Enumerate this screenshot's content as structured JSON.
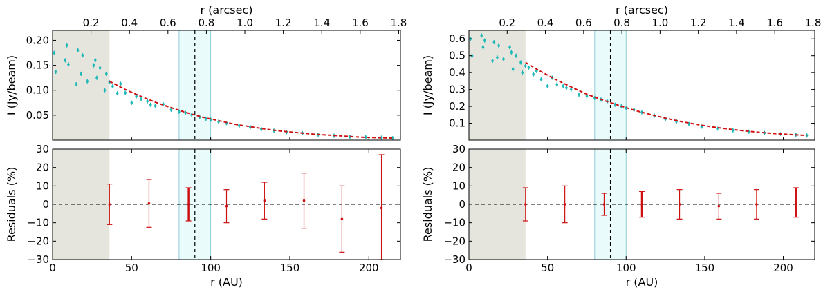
{
  "colors": {
    "shade": "#e5e5dd",
    "band_fill": "#e9fbfb",
    "band_edge": "#8ecfd6",
    "points": "#1fb8b8",
    "model": "#d01010",
    "resid": "#cc1111",
    "axis": "#000000"
  },
  "chart_data": [
    {
      "type": "scatter",
      "panel": "left",
      "top": {
        "ylabel": "I (Jy/beam)",
        "ylim": [
          0.0,
          0.22
        ],
        "yticks": [
          0.05,
          0.1,
          0.15,
          0.2
        ],
        "ytick_labels": [
          "0.05",
          "0.10",
          "0.15",
          "0.20"
        ],
        "points_r_au": [
          1,
          2,
          8,
          9,
          10,
          15,
          16,
          18,
          19,
          22,
          26,
          27,
          28,
          30,
          33,
          34,
          36,
          38,
          41,
          43,
          46,
          50,
          53,
          56,
          60,
          62,
          65,
          70,
          75,
          80,
          84,
          88,
          93,
          97,
          100,
          105,
          110,
          118,
          125,
          132,
          140,
          148,
          158,
          168,
          178,
          188,
          198,
          208,
          215
        ],
        "points_i": [
          0.175,
          0.137,
          0.16,
          0.19,
          0.152,
          0.112,
          0.18,
          0.133,
          0.17,
          0.118,
          0.15,
          0.16,
          0.125,
          0.145,
          0.1,
          0.133,
          0.116,
          0.108,
          0.094,
          0.113,
          0.095,
          0.075,
          0.088,
          0.082,
          0.078,
          0.071,
          0.069,
          0.072,
          0.061,
          0.057,
          0.055,
          0.051,
          0.046,
          0.043,
          0.041,
          0.037,
          0.034,
          0.029,
          0.026,
          0.022,
          0.019,
          0.016,
          0.014,
          0.011,
          0.009,
          0.007,
          0.006,
          0.005,
          0.004
        ],
        "model_r_au": [
          36,
          45,
          55,
          65,
          75,
          85,
          95,
          105,
          115,
          125,
          135,
          145,
          155,
          165,
          175,
          185,
          195,
          205,
          215
        ],
        "model_i": [
          0.118,
          0.103,
          0.089,
          0.076,
          0.065,
          0.055,
          0.046,
          0.039,
          0.032,
          0.027,
          0.022,
          0.018,
          0.015,
          0.012,
          0.01,
          0.008,
          0.006,
          0.005,
          0.004
        ]
      },
      "bottom": {
        "ylabel": "Residuals (%)",
        "ylim": [
          -30,
          30
        ],
        "yticks": [
          -30,
          -20,
          -10,
          0,
          10,
          20,
          30
        ],
        "ytick_labels": [
          "−30",
          "−20",
          "−10",
          "0",
          "10",
          "20",
          "30"
        ],
        "resid_r_au": [
          36,
          61,
          86,
          110,
          134,
          159,
          183,
          208
        ],
        "resid_value": [
          0,
          0.5,
          0,
          -1,
          2,
          2,
          -8,
          -2
        ],
        "resid_err": [
          11,
          13,
          9,
          9,
          10,
          15,
          18,
          29
        ],
        "resid_bold": [
          false,
          false,
          true,
          false,
          false,
          false,
          false,
          false
        ]
      }
    },
    {
      "type": "scatter",
      "panel": "right",
      "top": {
        "ylabel": "I (Jy/beam)",
        "ylim": [
          0.0,
          0.65
        ],
        "yticks": [
          0.1,
          0.2,
          0.3,
          0.4,
          0.5,
          0.6
        ],
        "ytick_labels": [
          "0.1",
          "0.2",
          "0.3",
          "0.4",
          "0.5",
          "0.6"
        ],
        "points_r_au": [
          1,
          2,
          8,
          9,
          10,
          15,
          16,
          18,
          19,
          22,
          26,
          27,
          28,
          30,
          33,
          34,
          36,
          38,
          41,
          43,
          46,
          50,
          53,
          56,
          60,
          62,
          65,
          70,
          75,
          80,
          84,
          88,
          93,
          97,
          100,
          105,
          110,
          118,
          125,
          132,
          140,
          148,
          158,
          168,
          178,
          188,
          198,
          208,
          215
        ],
        "points_i": [
          0.6,
          0.5,
          0.62,
          0.55,
          0.59,
          0.47,
          0.58,
          0.49,
          0.56,
          0.48,
          0.55,
          0.52,
          0.42,
          0.5,
          0.46,
          0.4,
          0.44,
          0.43,
          0.39,
          0.41,
          0.36,
          0.32,
          0.37,
          0.33,
          0.32,
          0.31,
          0.3,
          0.27,
          0.26,
          0.25,
          0.24,
          0.23,
          0.21,
          0.2,
          0.19,
          0.18,
          0.165,
          0.145,
          0.125,
          0.11,
          0.095,
          0.08,
          0.068,
          0.058,
          0.05,
          0.043,
          0.037,
          0.032,
          0.028
        ],
        "model_r_au": [
          36,
          45,
          55,
          65,
          75,
          85,
          95,
          105,
          115,
          125,
          135,
          145,
          155,
          165,
          175,
          185,
          195,
          205,
          215
        ],
        "model_i": [
          0.46,
          0.41,
          0.36,
          0.315,
          0.272,
          0.238,
          0.207,
          0.178,
          0.153,
          0.13,
          0.11,
          0.093,
          0.078,
          0.066,
          0.055,
          0.046,
          0.039,
          0.033,
          0.028
        ]
      },
      "bottom": {
        "ylabel": "Residuals (%)",
        "ylim": [
          -30,
          30
        ],
        "yticks": [
          -30,
          -20,
          -10,
          0,
          10,
          20,
          30
        ],
        "ytick_labels": [
          "−30",
          "−20",
          "−10",
          "0",
          "10",
          "20",
          "30"
        ],
        "resid_r_au": [
          36,
          61,
          86,
          110,
          134,
          159,
          183,
          208
        ],
        "resid_value": [
          0,
          0,
          0,
          0,
          0,
          -1,
          0,
          1
        ],
        "resid_err": [
          9,
          10,
          6,
          7,
          8,
          7,
          8,
          8
        ],
        "resid_bold": [
          false,
          false,
          false,
          true,
          false,
          false,
          false,
          true
        ]
      }
    }
  ],
  "shared": {
    "xlabel": "r (AU)",
    "xlim": [
      0,
      220
    ],
    "xticks": [
      0,
      50,
      100,
      150,
      200
    ],
    "xtick_labels": [
      "0",
      "50",
      "100",
      "150",
      "200"
    ],
    "top_xlabel": "r (arcsec)",
    "au_per_arcsec": 121.6,
    "top_xticks": [
      0.2,
      0.4,
      0.6,
      0.8,
      1.0,
      1.2,
      1.4,
      1.6,
      1.8
    ],
    "top_xtick_labels": [
      "0.2",
      "0.4",
      "0.6",
      "0.8",
      "1.0",
      "1.2",
      "1.4",
      "1.6",
      "1.8"
    ],
    "shaded_region_au": [
      0,
      36
    ],
    "band_au": [
      80,
      100
    ],
    "dashed_line_au": 90
  }
}
